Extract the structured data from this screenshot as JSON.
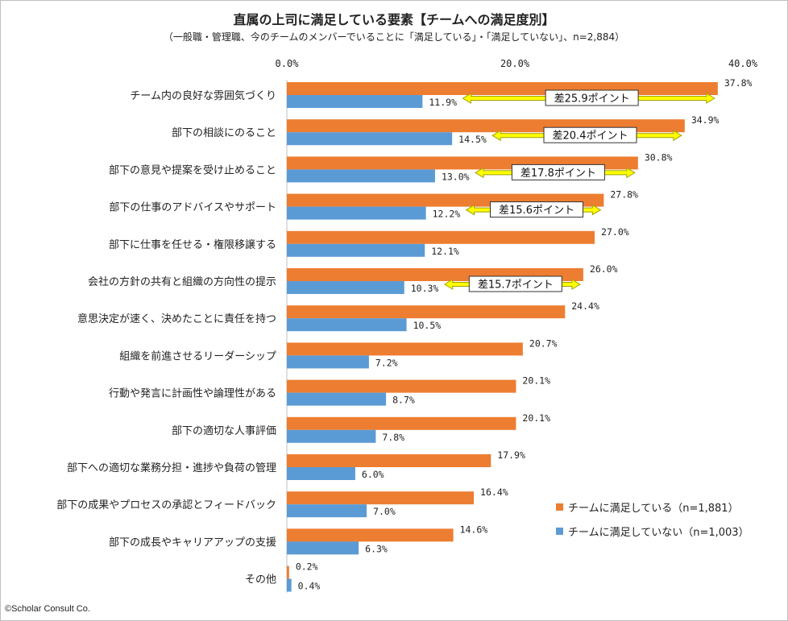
{
  "title": "直属の上司に満足している要素【チームへの満足度別】",
  "subtitle": "（一般職・管理職、今のチームのメンバーでいることに「満足している」・「満足していない」、n=2,884）",
  "copyright": "©Scholar Consult Co.",
  "colors": {
    "satisfied": "#ED7D31",
    "unsatisfied": "#5B9BD5",
    "arrow_fill": "#FFFF00",
    "arrow_stroke": "#A0A000"
  },
  "chart_data": {
    "type": "bar",
    "orientation": "horizontal",
    "xlim": [
      0,
      40
    ],
    "ticks": [
      "0.0%",
      "20.0%",
      "40.0%"
    ],
    "tick_values": [
      0,
      20,
      40
    ],
    "categories": [
      "チーム内の良好な雰囲気づくり",
      "部下の相談にのること",
      "部下の意見や提案を受け止めること",
      "部下の仕事のアドバイスやサポート",
      "部下に仕事を任せる・権限移譲する",
      "会社の方針の共有と組織の方向性の提示",
      "意思決定が速く、決めたことに責任を持つ",
      "組織を前進させるリーダーシップ",
      "行動や発言に計画性や論理性がある",
      "部下の適切な人事評価",
      "部下への適切な業務分担・進捗や負荷の管理",
      "部下の成果やプロセスの承認とフィードバック",
      "部下の成長やキャリアアップの支援",
      "その他"
    ],
    "series": [
      {
        "name": "チームに満足している（n=1,881）",
        "values": [
          37.8,
          34.9,
          30.8,
          27.8,
          27.0,
          26.0,
          24.4,
          20.7,
          20.1,
          20.1,
          17.9,
          16.4,
          14.6,
          0.2
        ],
        "labels": [
          "37.8%",
          "34.9%",
          "30.8%",
          "27.8%",
          "27.0%",
          "26.0%",
          "24.4%",
          "20.7%",
          "20.1%",
          "20.1%",
          "17.9%",
          "16.4%",
          "14.6%",
          "0.2%"
        ]
      },
      {
        "name": "チームに満足していない（n=1,003）",
        "values": [
          11.9,
          14.5,
          13.0,
          12.2,
          12.1,
          10.3,
          10.5,
          7.2,
          8.7,
          7.8,
          6.0,
          7.0,
          6.3,
          0.4
        ],
        "labels": [
          "11.9%",
          "14.5%",
          "13.0%",
          "12.2%",
          "12.1%",
          "10.3%",
          "10.5%",
          "7.2%",
          "8.7%",
          "7.8%",
          "6.0%",
          "7.0%",
          "6.3%",
          "0.4%"
        ]
      }
    ],
    "annotations": [
      {
        "category_index": 0,
        "label": "差25.9ポイント"
      },
      {
        "category_index": 1,
        "label": "差20.4ポイント"
      },
      {
        "category_index": 2,
        "label": "差17.8ポイント"
      },
      {
        "category_index": 3,
        "label": "差15.6ポイント"
      },
      {
        "category_index": 5,
        "label": "差15.7ポイント"
      }
    ],
    "legend_position": "bottom-right"
  }
}
